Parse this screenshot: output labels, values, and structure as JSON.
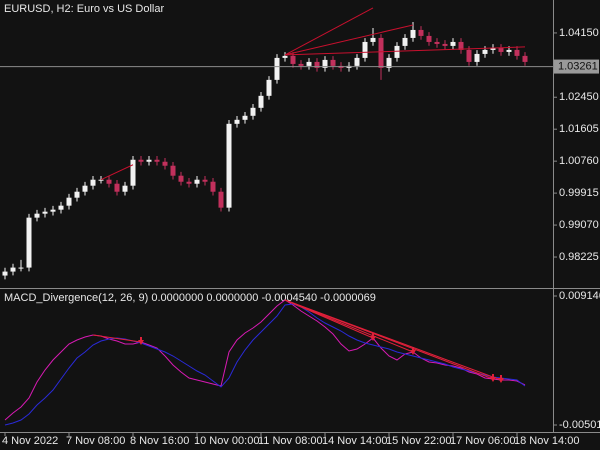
{
  "chart_data": [
    {
      "type": "candlestick",
      "title": "EURUSD, H2:  Euro vs US Dollar",
      "categories": [
        "4 Nov 2022",
        null,
        null,
        null,
        null,
        null,
        null,
        null,
        "7 Nov 08:00",
        null,
        null,
        null,
        null,
        null,
        null,
        null,
        "8 Nov 16:00",
        null,
        null,
        null,
        null,
        null,
        null,
        null,
        "10 Nov 00:00",
        null,
        null,
        null,
        null,
        null,
        null,
        null,
        "11 Nov 08:00",
        null,
        null,
        null,
        null,
        null,
        null,
        null,
        "14 Nov 14:00",
        null,
        null,
        null,
        null,
        null,
        null,
        null,
        "15 Nov 22:00",
        null,
        null,
        null,
        null,
        null,
        null,
        null,
        "17 Nov 06:00",
        null,
        null,
        null,
        null,
        null,
        null,
        null,
        "18 Nov 14:00",
        null
      ],
      "open": [
        0.97735,
        0.9784,
        0.97946,
        0.97946,
        0.99266,
        0.99371,
        0.99424,
        0.99477,
        0.99583,
        0.99794,
        0.99952,
        1.00111,
        1.00269,
        1.00269,
        1.00163,
        0.99952,
        1.00111,
        1.00797,
        1.00744,
        1.00797,
        1.00744,
        1.00639,
        1.00375,
        1.00216,
        1.00163,
        1.00269,
        1.00216,
        0.99952,
        0.9953,
        1.01747,
        1.01853,
        1.01959,
        1.0217,
        1.02487,
        1.02909,
        1.0349,
        1.03543,
        1.03331,
        1.03279,
        1.03384,
        1.03226,
        1.03437,
        1.03279,
        1.03226,
        1.03279,
        1.0349,
        1.03912,
        1.04018,
        1.03226,
        1.0349,
        1.03807,
        1.04018,
        1.04229,
        1.04071,
        1.03912,
        1.03859,
        1.03807,
        1.03912,
        1.03701,
        1.03384,
        1.03595,
        1.03701,
        1.03754,
        1.03648,
        1.03701,
        1.03543
      ],
      "high": [
        0.9794,
        0.98046,
        0.9815,
        0.99366,
        0.99471,
        0.99524,
        0.99577,
        0.99683,
        0.99894,
        1.00052,
        1.00211,
        1.00369,
        1.00369,
        1.00369,
        1.00263,
        1.00211,
        1.00897,
        1.00897,
        1.00897,
        1.00897,
        1.00844,
        1.00739,
        1.00475,
        1.00316,
        1.00369,
        1.00369,
        1.00316,
        1.00052,
        1.01847,
        1.01953,
        1.02059,
        1.0227,
        1.02587,
        1.03009,
        1.0359,
        1.03643,
        1.03643,
        1.03431,
        1.03484,
        1.03484,
        1.03537,
        1.03537,
        1.03379,
        1.03379,
        1.0359,
        1.04012,
        1.04282,
        1.04118,
        1.0359,
        1.03907,
        1.04118,
        1.0444,
        1.04329,
        1.04171,
        1.04012,
        1.03959,
        1.04012,
        1.04012,
        1.03801,
        1.03695,
        1.03801,
        1.03854,
        1.03854,
        1.03801,
        1.03801,
        1.03643
      ],
      "low": [
        0.97635,
        0.9774,
        0.97846,
        0.97846,
        0.99166,
        0.99271,
        0.99324,
        0.99377,
        0.99483,
        0.99694,
        0.99852,
        1.00011,
        1.00169,
        1.00063,
        0.99852,
        0.99852,
        1.00011,
        1.00644,
        1.00644,
        1.00644,
        1.00539,
        1.00275,
        1.00116,
        1.00063,
        1.00063,
        1.00116,
        0.99852,
        0.9943,
        0.9943,
        1.01647,
        1.01753,
        1.01859,
        1.0207,
        1.02387,
        1.02809,
        1.0339,
        1.03231,
        1.03179,
        1.03179,
        1.03126,
        1.03126,
        1.03179,
        1.03126,
        1.03126,
        1.03179,
        1.0339,
        1.03812,
        1.02909,
        1.03126,
        1.0339,
        1.03707,
        1.03918,
        1.03971,
        1.03812,
        1.03759,
        1.03707,
        1.03707,
        1.03601,
        1.03284,
        1.03284,
        1.03495,
        1.03601,
        1.03548,
        1.03548,
        1.03443,
        1.03284
      ],
      "close": [
        0.9784,
        0.97946,
        0.97946,
        0.99266,
        0.99371,
        0.99424,
        0.99477,
        0.99583,
        0.99794,
        0.99952,
        1.00111,
        1.00269,
        1.00269,
        1.00163,
        0.99952,
        1.00111,
        1.00797,
        1.00744,
        1.00797,
        1.00744,
        1.00639,
        1.00375,
        1.00216,
        1.00163,
        1.00269,
        1.00216,
        0.99952,
        0.9953,
        1.01747,
        1.01853,
        1.01959,
        1.0217,
        1.02487,
        1.02909,
        1.0349,
        1.03543,
        1.03331,
        1.03279,
        1.03384,
        1.03226,
        1.03437,
        1.03279,
        1.03226,
        1.03279,
        1.0349,
        1.03912,
        1.04018,
        1.03226,
        1.0349,
        1.03807,
        1.04018,
        1.04229,
        1.04071,
        1.03912,
        1.03859,
        1.03807,
        1.03912,
        1.03701,
        1.03384,
        1.03595,
        1.03701,
        1.03754,
        1.03648,
        1.03701,
        1.03543,
        1.03384
      ],
      "up_color": "#f2f2f2",
      "down_color": "#c2305c",
      "ylim": [
        0.97406,
        1.05021
      ],
      "yticks": [
        0.98225,
        {
          "value": 0.9907,
          "label": "0.99070"
        },
        0.99915,
        {
          "value": 1.0076,
          "label": "1.00760"
        },
        1.01605,
        {
          "value": 1.0245,
          "label": "1.02450"
        },
        {
          "value": 1.0415,
          "label": "1.04150"
        }
      ],
      "current_price": 1.03261,
      "divergence_color": "#c8102e",
      "divergence_lines": [
        {
          "x": [
            35,
            46
          ],
          "y": [
            1.03569,
            1.0481
          ]
        },
        {
          "x": [
            35,
            51
          ],
          "y": [
            1.03569,
            1.04361
          ]
        },
        {
          "x": [
            35,
            65
          ],
          "y": [
            1.03569,
            1.0378
          ]
        },
        {
          "x": [
            12,
            16
          ],
          "y": [
            1.00269,
            1.00665
          ]
        }
      ]
    },
    {
      "type": "line",
      "title": "MACD_Divergence(12, 26, 9) 0.0000000 0.0000000 -0.0004540 -0.0000069",
      "series": [
        {
          "color": "#d81ab4",
          "values": [
            -0.0044685,
            -0.0036999,
            -0.0030411,
            -0.0020529,
            -0.0002961,
            0.0010215,
            0.0021195,
            0.0029979,
            0.0038763,
            0.0043155,
            0.0046449,
            0.0048645,
            0.0047547,
            0.0044253,
            0.0042057,
            0.0038763,
            0.0038763,
            0.0040959,
            0.0037665,
            0.0034371,
            0.0025587,
            0.0015705,
            0.0008019,
            0.0001431,
            -7.65e-05,
            -0.0002961,
            -0.0005157,
            -0.0007353,
            0.0029979,
            0.0043155,
            0.0050841,
            0.0056331,
            0.0062919,
            0.0071703,
            0.0080487,
            0.0087075,
            0.0081585,
            0.0074997,
            0.0069507,
            0.0064017,
            0.0057429,
            0.0049743,
            0.0038763,
            0.0031077,
            0.0033273,
            0.0038763,
            0.0045351,
            0.0034371,
            0.0025587,
            0.0021195,
            0.0027783,
            0.0029979,
            0.0023391,
            0.0018999,
            0.0017901,
            0.0015705,
            0.0014607,
            0.0012411,
            0.0008019,
            0.0005823,
            0.0001431,
            3.33e-05,
            -7.65e-05,
            -7.65e-05,
            -0.0001863,
            -0.0006255
          ]
        },
        {
          "color": "#2a2ad8",
          "values": [
            -0.0050175,
            -0.0047979,
            -0.0044685,
            -0.0038097,
            -0.0028215,
            -0.0020529,
            -0.0011745,
            3.33e-05,
            0.0012411,
            0.0023391,
            0.0029979,
            0.0037665,
            0.0042057,
            0.0044253,
            0.0045351,
            0.0044253,
            0.0042057,
            0.0039861,
            0.0036567,
            0.0033273,
            0.0029979,
            0.0025587,
            0.0020097,
            0.0014607,
            0.0009117,
            0.0004725,
            -0.0001863,
            -0.0008451,
            0.0001431,
            0.0018999,
            0.0032175,
            0.0043155,
            0.0051939,
            0.0060723,
            0.0069507,
            0.0081585,
            0.0082683,
            0.0079389,
            0.0073899,
            0.0067311,
            0.0061821,
            0.0057429,
            0.0053037,
            0.0047547,
            0.0043155,
            0.0039861,
            0.0037665,
            0.0035469,
            0.0033273,
            0.0029979,
            0.0027783,
            0.0025587,
            0.0023391,
            0.0021195,
            0.0018999,
            0.0016803,
            0.0013509,
            0.0011313,
            0.0009117,
            0.0006921,
            0.0004725,
            0.0002529,
            0.0001431,
            3.33e-05,
            -7.65e-05,
            -0.0007353
          ]
        }
      ],
      "ylim": [
        -0.0057851,
        0.0099153
      ],
      "yticks": [
        0.0091467,
        -0.0050165
      ],
      "divergence_color": "#e0203a",
      "divergence_lines": [
        {
          "x": [
            35,
            46
          ],
          "y": [
            0.0087075,
            0.0045351
          ]
        },
        {
          "x": [
            35,
            51
          ],
          "y": [
            0.0087075,
            0.0029979
          ]
        },
        {
          "x": [
            35,
            61
          ],
          "y": [
            0.0087075,
            3.33e-05
          ]
        },
        {
          "x": [
            35,
            62
          ],
          "y": [
            0.0087075,
            -7.65e-05
          ]
        },
        {
          "x": [
            11,
            17
          ],
          "y": [
            0.0048645,
            0.0040959
          ]
        }
      ],
      "signals": {
        "x": [
          17,
          46,
          51,
          61,
          62
        ],
        "y": [
          0.0040959,
          0.0045351,
          0.0029979,
          3.33e-05,
          -7.65e-05
        ]
      }
    }
  ]
}
